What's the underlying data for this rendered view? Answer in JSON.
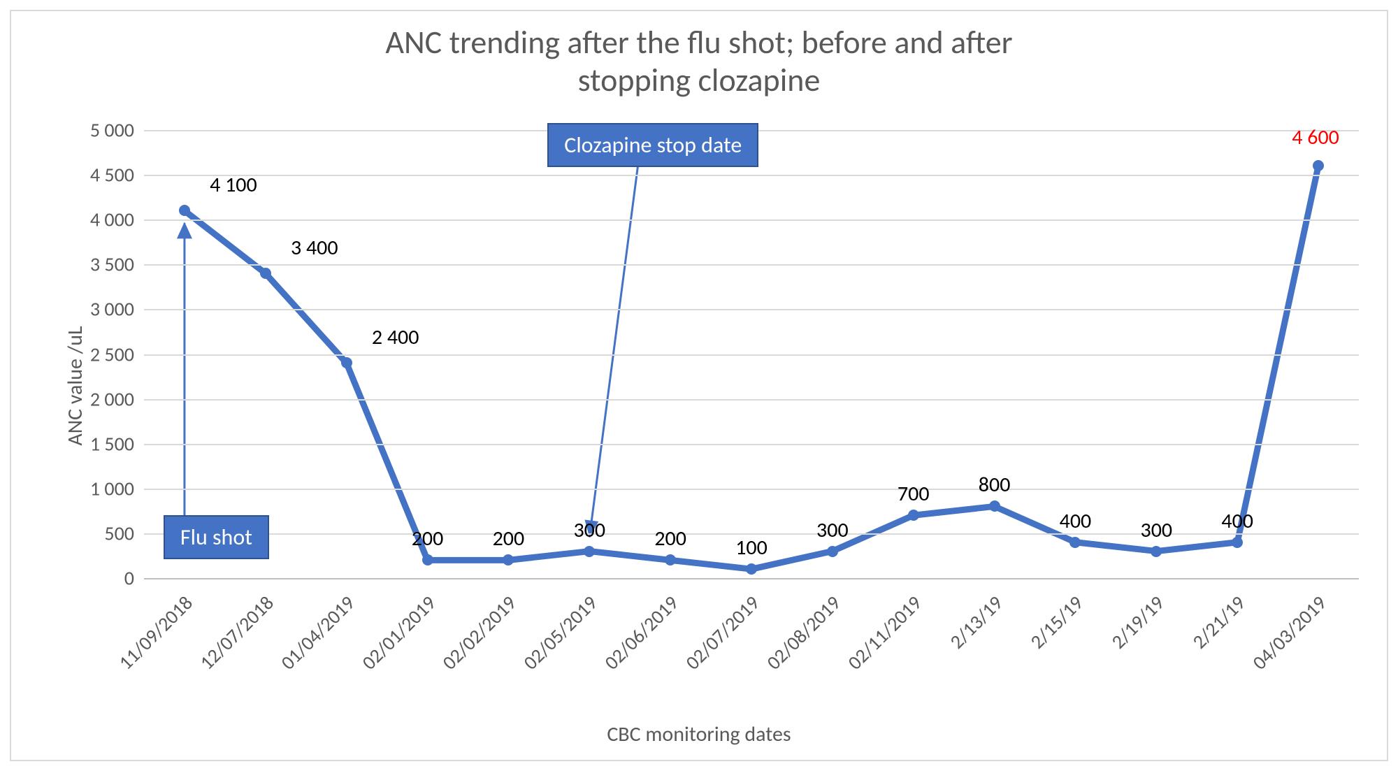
{
  "chart": {
    "type": "line",
    "title_line1": "ANC trending after the flu shot; before and after",
    "title_line2": "stopping clozapine",
    "title_fontsize": 46,
    "title_color": "#595959",
    "ylabel": "ANC value /uL",
    "xlabel": "CBC monitoring dates",
    "label_fontsize": 30,
    "label_color": "#595959",
    "tick_fontsize": 28,
    "tick_color": "#595959",
    "background_color": "#ffffff",
    "border_color": "#d9d9d9",
    "grid_color": "#d9d9d9",
    "axis_color": "#bfbfbf",
    "ylim": [
      0,
      5000
    ],
    "ytick_step": 500,
    "yticks": [
      "0",
      "500",
      "1 000",
      "1 500",
      "2 000",
      "2 500",
      "3 000",
      "3 500",
      "4 000",
      "4 500",
      "5 000"
    ],
    "categories": [
      "11/09/2018",
      "12/07/2018",
      "01/04/2019",
      "02/01/2019",
      "02/02/2019",
      "02/05/2019",
      "02/06/2019",
      "02/07/2019",
      "02/08/2019",
      "02/11/2019",
      "2/13/19",
      "2/15/19",
      "2/19/19",
      "2/21/19",
      "04/03/2019"
    ],
    "values": [
      4100,
      3400,
      2400,
      200,
      200,
      300,
      200,
      100,
      300,
      700,
      800,
      400,
      300,
      400,
      4600
    ],
    "value_labels": [
      "4 100",
      "3 400",
      "2 400",
      "200",
      "200",
      "300",
      "200",
      "100",
      "300",
      "700",
      "800",
      "400",
      "300",
      "400",
      "4 600"
    ],
    "value_label_colors": [
      "#000000",
      "#000000",
      "#000000",
      "#000000",
      "#000000",
      "#000000",
      "#000000",
      "#000000",
      "#000000",
      "#000000",
      "#000000",
      "#000000",
      "#000000",
      "#000000",
      "#ff0000"
    ],
    "point_label_fontsize": 30,
    "line_color": "#4472c4",
    "line_width": 9,
    "marker_color": "#4472c4",
    "marker_size": 16,
    "callouts": {
      "flu_shot": {
        "text": "Flu shot",
        "box_color": "#4472c4",
        "box_border": "#2f528f",
        "text_color": "#ffffff",
        "arrow_color": "#4472c4",
        "target_index": 0
      },
      "clozapine_stop": {
        "text": "Clozapine stop date",
        "box_color": "#4472c4",
        "box_border": "#2f528f",
        "text_color": "#ffffff",
        "arrow_color": "#4472c4",
        "target_index": 5
      }
    }
  }
}
